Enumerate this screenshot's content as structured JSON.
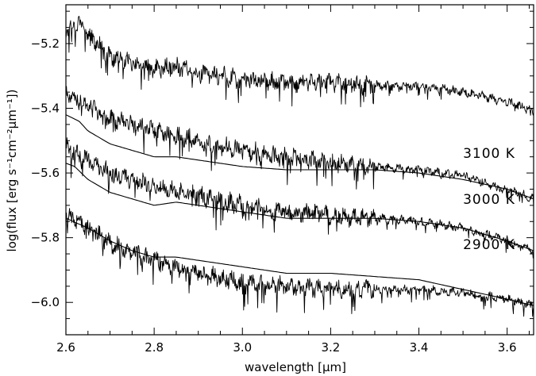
{
  "chart_data": {
    "type": "line",
    "title": "",
    "xlabel": "wavelength [μm]",
    "ylabel": "log(flux [erg s⁻¹cm⁻²μm⁻¹])",
    "xlim": [
      2.6,
      3.66
    ],
    "ylim": [
      -6.1,
      -5.08
    ],
    "x_ticks": [
      2.6,
      2.8,
      3.0,
      3.2,
      3.4,
      3.6
    ],
    "x_tick_labels": [
      "2.6",
      "2.8",
      "3.0",
      "3.2",
      "3.4",
      "3.6"
    ],
    "y_ticks": [
      -5.2,
      -5.4,
      -5.6,
      -5.8,
      -6.0
    ],
    "y_tick_labels": [
      "−5.2",
      "−5.4",
      "−5.6",
      "−5.8",
      "−6.0"
    ],
    "grid": false,
    "annotations": [
      {
        "text": "3100 K",
        "x": 3.5,
        "y": -5.553
      },
      {
        "text": "3000 K",
        "x": 3.5,
        "y": -5.695
      },
      {
        "text": "2900 K",
        "x": 3.5,
        "y": -5.835
      }
    ],
    "series": [
      {
        "role": "observed spectrum",
        "x": [
          2.6,
          2.63,
          2.65,
          2.7,
          2.75,
          2.8,
          2.85,
          2.9,
          3.0,
          3.1,
          3.2,
          3.3,
          3.4,
          3.5,
          3.6,
          3.66
        ],
        "y": [
          -5.16,
          -5.13,
          -5.17,
          -5.24,
          -5.26,
          -5.28,
          -5.27,
          -5.29,
          -5.31,
          -5.32,
          -5.32,
          -5.33,
          -5.33,
          -5.35,
          -5.38,
          -5.41
        ]
      },
      {
        "role": "model, 3100 K",
        "x": [
          2.6,
          2.63,
          2.65,
          2.7,
          2.75,
          2.8,
          2.85,
          2.9,
          3.0,
          3.1,
          3.2,
          3.3,
          3.4,
          3.5,
          3.6,
          3.66
        ],
        "y": [
          -5.42,
          -5.44,
          -5.47,
          -5.51,
          -5.53,
          -5.55,
          -5.55,
          -5.56,
          -5.58,
          -5.59,
          -5.59,
          -5.59,
          -5.6,
          -5.62,
          -5.65,
          -5.68
        ]
      },
      {
        "role": "observed spectrum, 3100 K",
        "x": [
          2.6,
          2.65,
          2.7,
          2.8,
          2.9,
          3.0,
          3.1,
          3.2,
          3.3,
          3.4,
          3.5,
          3.6,
          3.66
        ],
        "y": [
          -5.35,
          -5.39,
          -5.43,
          -5.47,
          -5.5,
          -5.53,
          -5.55,
          -5.57,
          -5.58,
          -5.59,
          -5.61,
          -5.65,
          -5.68
        ]
      },
      {
        "role": "model, 3000 K",
        "x": [
          2.6,
          2.62,
          2.65,
          2.7,
          2.75,
          2.8,
          2.85,
          2.9,
          3.0,
          3.1,
          3.2,
          3.3,
          3.4,
          3.5,
          3.6,
          3.66
        ],
        "y": [
          -5.57,
          -5.58,
          -5.62,
          -5.66,
          -5.68,
          -5.7,
          -5.69,
          -5.7,
          -5.72,
          -5.74,
          -5.74,
          -5.74,
          -5.75,
          -5.77,
          -5.81,
          -5.84
        ]
      },
      {
        "role": "observed spectrum, 3000 K",
        "x": [
          2.6,
          2.65,
          2.7,
          2.8,
          2.9,
          3.0,
          3.1,
          3.2,
          3.3,
          3.4,
          3.5,
          3.6,
          3.66
        ],
        "y": [
          -5.52,
          -5.56,
          -5.6,
          -5.64,
          -5.67,
          -5.7,
          -5.72,
          -5.73,
          -5.74,
          -5.75,
          -5.77,
          -5.81,
          -5.84
        ]
      },
      {
        "role": "model, 2900 K",
        "x": [
          2.6,
          2.65,
          2.7,
          2.75,
          2.8,
          2.85,
          2.9,
          3.0,
          3.1,
          3.2,
          3.3,
          3.4,
          3.5,
          3.6,
          3.66
        ],
        "y": [
          -5.74,
          -5.77,
          -5.81,
          -5.84,
          -5.86,
          -5.86,
          -5.87,
          -5.89,
          -5.91,
          -5.91,
          -5.92,
          -5.93,
          -5.96,
          -5.99,
          -6.01
        ]
      },
      {
        "role": "observed spectrum, 2900 K",
        "x": [
          2.6,
          2.65,
          2.7,
          2.8,
          2.9,
          3.0,
          3.1,
          3.2,
          3.3,
          3.4,
          3.5,
          3.6,
          3.66
        ],
        "y": [
          -5.72,
          -5.77,
          -5.82,
          -5.87,
          -5.91,
          -5.94,
          -5.95,
          -5.96,
          -5.96,
          -5.96,
          -5.97,
          -5.99,
          -6.01
        ]
      }
    ]
  }
}
